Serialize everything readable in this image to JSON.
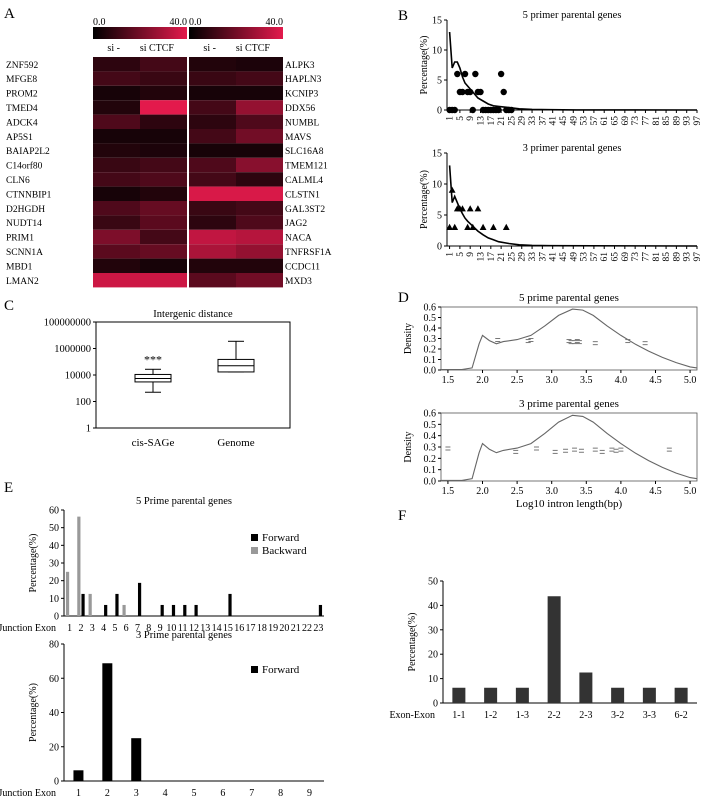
{
  "panels": {
    "A": {
      "label": "A"
    },
    "B": {
      "label": "B"
    },
    "C": {
      "label": "C"
    },
    "D": {
      "label": "D"
    },
    "E": {
      "label": "E"
    },
    "F": {
      "label": "F"
    }
  },
  "chart_data": [
    {
      "id": "A",
      "type": "heatmap",
      "colorbar": {
        "min_label": "0.0",
        "max_label": "40.0",
        "min_color": "#000000",
        "max_color": "#e31a4c"
      },
      "columns": [
        "si -",
        "si CTCF"
      ],
      "left": {
        "rows": [
          "ZNF592",
          "MFGE8",
          "PROM2",
          "TMED4",
          "ADCK4",
          "AP5S1",
          "BAIAP2L2",
          "C14orf80",
          "CLN6",
          "CTNNBIP1",
          "D2HGDH",
          "NUDT14",
          "PRIM1",
          "SCNN1A",
          "MBD1",
          "LMAN2"
        ],
        "values": [
          [
            8,
            12
          ],
          [
            12,
            10
          ],
          [
            4,
            6
          ],
          [
            6,
            40
          ],
          [
            14,
            8
          ],
          [
            4,
            4
          ],
          [
            6,
            5
          ],
          [
            10,
            12
          ],
          [
            12,
            14
          ],
          [
            4,
            6
          ],
          [
            14,
            18
          ],
          [
            10,
            16
          ],
          [
            22,
            12
          ],
          [
            16,
            18
          ],
          [
            6,
            4
          ],
          [
            36,
            36
          ]
        ]
      },
      "right": {
        "rows": [
          "ALPK3",
          "HAPLN3",
          "KCNIP3",
          "DDX56",
          "NUMBL",
          "MAVS",
          "SLC16A8",
          "TMEM121",
          "CALML4",
          "CLSTN1",
          "GAL3ST2",
          "JAG2",
          "NACA",
          "TNFRSF1A",
          "CCDC11",
          "MXD3"
        ],
        "values": [
          [
            6,
            5
          ],
          [
            10,
            12
          ],
          [
            4,
            4
          ],
          [
            12,
            26
          ],
          [
            8,
            14
          ],
          [
            12,
            20
          ],
          [
            4,
            4
          ],
          [
            14,
            24
          ],
          [
            12,
            8
          ],
          [
            38,
            38
          ],
          [
            10,
            12
          ],
          [
            8,
            14
          ],
          [
            34,
            32
          ],
          [
            30,
            26
          ],
          [
            6,
            6
          ],
          [
            16,
            20
          ]
        ]
      }
    },
    {
      "id": "B1",
      "type": "scatter",
      "title": "5 primer parental genes",
      "ylabel": "Percentage(%)",
      "ylim": [
        0,
        15
      ],
      "yticks": [
        0,
        5,
        10,
        15
      ],
      "xticks": [
        "1",
        "5",
        "9",
        "13",
        "17",
        "21",
        "25",
        "29",
        "33",
        "37",
        "41",
        "45",
        "49",
        "53",
        "57",
        "61",
        "65",
        "69",
        "73",
        "77",
        "81",
        "85",
        "89",
        "93",
        "97"
      ],
      "marker": "circle",
      "points": [
        [
          1,
          0
        ],
        [
          2,
          0
        ],
        [
          3,
          0
        ],
        [
          4,
          6
        ],
        [
          5,
          3
        ],
        [
          6,
          3
        ],
        [
          7,
          6
        ],
        [
          8,
          3
        ],
        [
          9,
          3
        ],
        [
          10,
          0
        ],
        [
          11,
          6
        ],
        [
          12,
          3
        ],
        [
          13,
          3
        ],
        [
          14,
          0
        ],
        [
          15,
          0
        ],
        [
          16,
          0
        ],
        [
          17,
          0
        ],
        [
          18,
          0
        ],
        [
          19,
          0
        ],
        [
          20,
          0
        ],
        [
          21,
          6
        ],
        [
          22,
          3
        ],
        [
          23,
          0
        ],
        [
          24,
          0
        ],
        [
          25,
          0
        ]
      ],
      "curve": [
        [
          1,
          13
        ],
        [
          2,
          7
        ],
        [
          3,
          8
        ],
        [
          4,
          8
        ],
        [
          5,
          7
        ],
        [
          6,
          5.5
        ],
        [
          7,
          4.5
        ],
        [
          8,
          4
        ],
        [
          9,
          3.5
        ],
        [
          10,
          3
        ],
        [
          12,
          2
        ],
        [
          14,
          1.5
        ],
        [
          16,
          1
        ],
        [
          18,
          0.7
        ],
        [
          20,
          0.6
        ],
        [
          24,
          0.4
        ],
        [
          28,
          0.2
        ],
        [
          33,
          0.1
        ],
        [
          40,
          0.05
        ],
        [
          50,
          0.02
        ],
        [
          97,
          0
        ]
      ]
    },
    {
      "id": "B2",
      "type": "scatter",
      "title": "3 primer parental genes",
      "ylabel": "Percentage(%)",
      "ylim": [
        0,
        15
      ],
      "yticks": [
        0,
        5,
        10,
        15
      ],
      "xticks": [
        "1",
        "5",
        "9",
        "13",
        "17",
        "21",
        "25",
        "29",
        "33",
        "37",
        "41",
        "45",
        "49",
        "53",
        "57",
        "61",
        "65",
        "69",
        "73",
        "77",
        "81",
        "85",
        "89",
        "93",
        "97"
      ],
      "marker": "triangle",
      "points": [
        [
          1,
          3
        ],
        [
          2,
          9
        ],
        [
          3,
          3
        ],
        [
          4,
          6
        ],
        [
          5,
          6
        ],
        [
          6,
          6
        ],
        [
          8,
          3
        ],
        [
          9,
          6
        ],
        [
          10,
          3
        ],
        [
          12,
          6
        ],
        [
          14,
          3
        ],
        [
          18,
          3
        ],
        [
          23,
          3
        ]
      ],
      "curve": [
        [
          1,
          13
        ],
        [
          2,
          7
        ],
        [
          3,
          8
        ],
        [
          4,
          7
        ],
        [
          5,
          6
        ],
        [
          6,
          5.2
        ],
        [
          7,
          4.5
        ],
        [
          8,
          4
        ],
        [
          9,
          3.6
        ],
        [
          10,
          3.2
        ],
        [
          12,
          2.4
        ],
        [
          14,
          1.8
        ],
        [
          16,
          1.3
        ],
        [
          18,
          1
        ],
        [
          20,
          0.7
        ],
        [
          24,
          0.4
        ],
        [
          28,
          0.2
        ],
        [
          33,
          0.1
        ],
        [
          40,
          0.05
        ],
        [
          97,
          0
        ]
      ]
    },
    {
      "id": "C",
      "type": "boxplot",
      "title": "Intergenic distance",
      "yscale": "log",
      "yticks": [
        "1",
        "100",
        "10000",
        "1000000",
        "100000000"
      ],
      "categories": [
        "cis-SAGe",
        "Genome"
      ],
      "boxes": [
        {
          "min": 500,
          "q1": 3000,
          "median": 5500,
          "q3": 11000,
          "max": 27000
        },
        {
          "min": 17000,
          "q1": 17000,
          "median": 50000,
          "q3": 150000,
          "max": 3500000
        }
      ],
      "annotation": "***"
    },
    {
      "id": "D1",
      "type": "line",
      "title": "5 prime parental genes",
      "ylabel": "Density",
      "ylim": [
        0,
        0.6
      ],
      "yticks": [
        "0.0",
        "0.1",
        "0.2",
        "0.3",
        "0.4",
        "0.5",
        "0.6"
      ],
      "xlim": [
        1.4,
        5.1
      ],
      "xticks": [
        "1.5",
        "2.0",
        "2.5",
        "3.0",
        "3.5",
        "4.0",
        "4.5",
        "5.0"
      ],
      "curve": [
        [
          1.4,
          0.005
        ],
        [
          1.7,
          0.005
        ],
        [
          1.85,
          0.02
        ],
        [
          1.95,
          0.25
        ],
        [
          2.0,
          0.33
        ],
        [
          2.1,
          0.28
        ],
        [
          2.2,
          0.25
        ],
        [
          2.3,
          0.27
        ],
        [
          2.5,
          0.29
        ],
        [
          2.7,
          0.33
        ],
        [
          2.9,
          0.42
        ],
        [
          3.1,
          0.52
        ],
        [
          3.3,
          0.58
        ],
        [
          3.45,
          0.57
        ],
        [
          3.6,
          0.52
        ],
        [
          3.8,
          0.42
        ],
        [
          4.0,
          0.33
        ],
        [
          4.2,
          0.25
        ],
        [
          4.4,
          0.18
        ],
        [
          4.6,
          0.12
        ],
        [
          4.8,
          0.07
        ],
        [
          5.0,
          0.03
        ],
        [
          5.1,
          0.02
        ]
      ],
      "points": [
        [
          2.22,
          0.3
        ],
        [
          2.66,
          0.29
        ],
        [
          2.7,
          0.3
        ],
        [
          3.25,
          0.29
        ],
        [
          3.28,
          0.28
        ],
        [
          3.33,
          0.28
        ],
        [
          3.37,
          0.29
        ],
        [
          3.4,
          0.28
        ],
        [
          3.63,
          0.27
        ],
        [
          4.1,
          0.29
        ],
        [
          4.35,
          0.27
        ]
      ]
    },
    {
      "id": "D2",
      "type": "line",
      "title": "3 prime parental genes",
      "ylabel": "Density",
      "xlabel": "Log10 intron length(bp)",
      "ylim": [
        0,
        0.6
      ],
      "yticks": [
        "0.0",
        "0.1",
        "0.2",
        "0.3",
        "0.4",
        "0.5",
        "0.6"
      ],
      "xlim": [
        1.4,
        5.1
      ],
      "xticks": [
        "1.5",
        "2.0",
        "2.5",
        "3.0",
        "3.5",
        "4.0",
        "4.5",
        "5.0"
      ],
      "curve": [
        [
          1.4,
          0.005
        ],
        [
          1.7,
          0.005
        ],
        [
          1.85,
          0.02
        ],
        [
          1.95,
          0.25
        ],
        [
          2.0,
          0.33
        ],
        [
          2.1,
          0.28
        ],
        [
          2.2,
          0.25
        ],
        [
          2.3,
          0.27
        ],
        [
          2.5,
          0.29
        ],
        [
          2.7,
          0.33
        ],
        [
          2.9,
          0.42
        ],
        [
          3.1,
          0.52
        ],
        [
          3.3,
          0.58
        ],
        [
          3.45,
          0.57
        ],
        [
          3.6,
          0.52
        ],
        [
          3.8,
          0.42
        ],
        [
          4.0,
          0.33
        ],
        [
          4.2,
          0.25
        ],
        [
          4.4,
          0.18
        ],
        [
          4.6,
          0.12
        ],
        [
          4.8,
          0.07
        ],
        [
          5.0,
          0.03
        ],
        [
          5.1,
          0.02
        ]
      ],
      "points": [
        [
          1.5,
          0.3
        ],
        [
          2.48,
          0.27
        ],
        [
          2.78,
          0.3
        ],
        [
          3.05,
          0.27
        ],
        [
          3.2,
          0.28
        ],
        [
          3.33,
          0.29
        ],
        [
          3.43,
          0.28
        ],
        [
          3.63,
          0.29
        ],
        [
          3.73,
          0.27
        ],
        [
          3.87,
          0.29
        ],
        [
          3.93,
          0.28
        ],
        [
          4.0,
          0.29
        ],
        [
          4.7,
          0.29
        ]
      ]
    },
    {
      "id": "E1",
      "type": "bar",
      "title": "5 Prime parental genes",
      "ylabel": "Percentage(%)",
      "xlabel_prefix": "Junction Exon",
      "ylim": [
        0,
        60
      ],
      "yticks": [
        "0",
        "10",
        "20",
        "30",
        "40",
        "50",
        "60"
      ],
      "categories": [
        "1",
        "2",
        "3",
        "4",
        "5",
        "6",
        "7",
        "8",
        "9",
        "10",
        "11",
        "12",
        "13",
        "14",
        "15",
        "16",
        "17",
        "18",
        "19",
        "20",
        "21",
        "22",
        "23"
      ],
      "series": [
        {
          "name": "Forward",
          "color": "#000000",
          "values": [
            0,
            12.5,
            0,
            6.25,
            12.5,
            0,
            18.75,
            0,
            6.25,
            6.25,
            6.25,
            6.25,
            0,
            0,
            12.5,
            0,
            0,
            0,
            0,
            0,
            0,
            0,
            6.25
          ]
        },
        {
          "name": "Backward",
          "color": "#999999",
          "values": [
            25,
            56.25,
            12.5,
            0,
            0,
            6.25,
            0,
            0,
            0,
            0,
            0,
            0,
            0,
            0,
            0,
            0,
            0,
            0,
            0,
            0,
            0,
            0,
            0
          ]
        }
      ]
    },
    {
      "id": "E2",
      "type": "bar",
      "title": "3 Prime parental genes",
      "ylabel": "Percentage(%)",
      "xlabel_prefix": "Junction Exon",
      "ylim": [
        0,
        80
      ],
      "yticks": [
        "0",
        "20",
        "40",
        "60",
        "80"
      ],
      "categories": [
        "1",
        "2",
        "3",
        "4",
        "5",
        "6",
        "7",
        "8",
        "9"
      ],
      "series": [
        {
          "name": "Forward",
          "color": "#000000",
          "values": [
            6.25,
            68.75,
            25,
            0,
            0,
            0,
            0,
            0,
            0
          ]
        }
      ]
    },
    {
      "id": "F",
      "type": "bar",
      "ylabel": "Percentage(%)",
      "xlabel_prefix": "Exon-Exon",
      "ylim": [
        0,
        50
      ],
      "yticks": [
        "0",
        "10",
        "20",
        "30",
        "40",
        "50"
      ],
      "categories": [
        "1-1",
        "1-2",
        "1-3",
        "2-2",
        "2-3",
        "3-2",
        "3-3",
        "6-2"
      ],
      "values": [
        6.25,
        6.25,
        6.25,
        43.75,
        12.5,
        6.25,
        6.25,
        6.25
      ],
      "color": "#333333"
    }
  ]
}
